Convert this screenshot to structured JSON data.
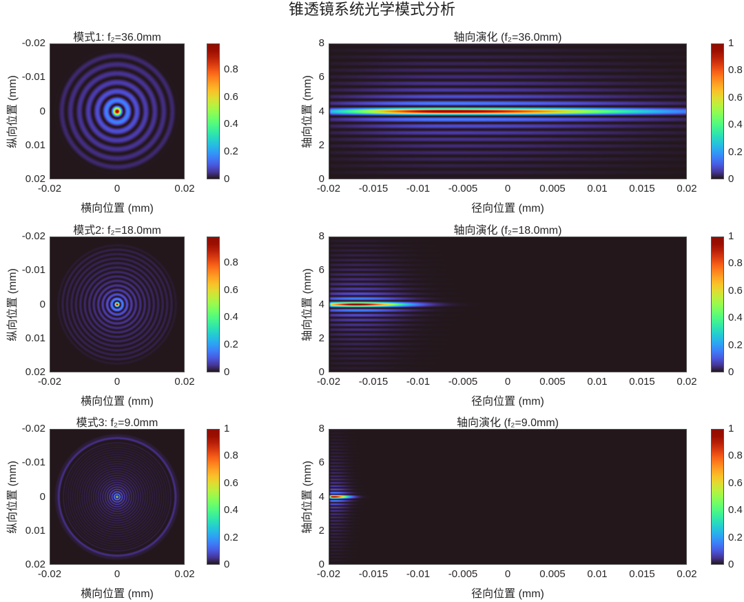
{
  "title": "锥透镜系统光学模式分析",
  "chart_data": [
    {
      "type": "heatmap",
      "title": "模式1: f₂=36.0mm",
      "xlabel": "横向位置 (mm)",
      "ylabel": "纵向位置 (mm)",
      "xlim": [
        -0.02,
        0.02
      ],
      "ylim": [
        0.02,
        -0.02
      ],
      "xticks": [
        "-0.02",
        "0",
        "0.02"
      ],
      "yticks": [
        "-0.02",
        "-0.01",
        "0",
        "0.01",
        "0.02"
      ],
      "cticks": [
        "0",
        "0.2",
        "0.4",
        "0.6",
        "0.8"
      ],
      "clim": [
        0,
        1
      ],
      "kind": "transverse",
      "ring_period_mm": 0.0027,
      "radius_mm": 0.019
    },
    {
      "type": "heatmap",
      "title": "轴向演化 (f₂=36.0mm)",
      "xlabel": "径向位置 (mm)",
      "ylabel": "轴向位置 (mm)",
      "xlim": [
        -0.02,
        0.02
      ],
      "ylim": [
        0,
        8
      ],
      "xticks": [
        "-0.02",
        "-0.015",
        "-0.01",
        "-0.005",
        "0",
        "0.005",
        "0.01",
        "0.015",
        "0.02"
      ],
      "yticks": [
        "8",
        "6",
        "4",
        "2",
        "0"
      ],
      "cticks": [
        "0",
        "0.2",
        "0.4",
        "0.6",
        "0.8",
        "1"
      ],
      "clim": [
        0,
        1
      ],
      "kind": "axial",
      "peak_x_mm": -0.007,
      "peak_z_mm": 4,
      "left_width_mm": 0.011,
      "right_width_mm": 0.02,
      "z_freq": 8
    },
    {
      "type": "heatmap",
      "title": "模式2: f₂=18.0mm",
      "xlabel": "横向位置 (mm)",
      "ylabel": "纵向位置 (mm)",
      "xlim": [
        -0.02,
        0.02
      ],
      "ylim": [
        0.02,
        -0.02
      ],
      "xticks": [
        "-0.02",
        "0",
        "0.02"
      ],
      "yticks": [
        "-0.02",
        "-0.01",
        "0",
        "0.01",
        "0.02"
      ],
      "cticks": [
        "0",
        "0.2",
        "0.4",
        "0.6",
        "0.8"
      ],
      "clim": [
        0,
        1
      ],
      "kind": "transverse",
      "ring_period_mm": 0.00135,
      "radius_mm": 0.019
    },
    {
      "type": "heatmap",
      "title": "轴向演化 (f₂=18.0mm)",
      "xlabel": "径向位置 (mm)",
      "ylabel": "轴向位置 (mm)",
      "xlim": [
        -0.02,
        0.02
      ],
      "ylim": [
        0,
        8
      ],
      "xticks": [
        "-0.02",
        "-0.015",
        "-0.01",
        "-0.005",
        "0",
        "0.005",
        "0.01",
        "0.015",
        "0.02"
      ],
      "yticks": [
        "8",
        "6",
        "4",
        "2",
        "0"
      ],
      "cticks": [
        "0",
        "0.2",
        "0.4",
        "0.6",
        "0.8",
        "1"
      ],
      "clim": [
        0,
        1
      ],
      "kind": "axial",
      "peak_x_mm": -0.017,
      "peak_z_mm": 4,
      "left_width_mm": 0.004,
      "right_width_mm": 0.005,
      "z_freq": 11
    },
    {
      "type": "heatmap",
      "title": "模式3: f₂=9.0mm",
      "xlabel": "横向位置 (mm)",
      "ylabel": "纵向位置 (mm)",
      "xlim": [
        -0.02,
        0.02
      ],
      "ylim": [
        0.02,
        -0.02
      ],
      "xticks": [
        "-0.02",
        "0",
        "0.02"
      ],
      "yticks": [
        "-0.02",
        "-0.01",
        "0",
        "0.01",
        "0.02"
      ],
      "cticks": [
        "0",
        "0.2",
        "0.4",
        "0.6",
        "0.8",
        "1"
      ],
      "clim": [
        0,
        1
      ],
      "kind": "transverse",
      "ring_period_mm": 0.0007,
      "radius_mm": 0.019
    },
    {
      "type": "heatmap",
      "title": "轴向演化 (f₂=9.0mm)",
      "xlabel": "径向位置 (mm)",
      "ylabel": "轴向位置 (mm)",
      "xlim": [
        -0.02,
        0.02
      ],
      "ylim": [
        0,
        8
      ],
      "xticks": [
        "-0.02",
        "-0.015",
        "-0.01",
        "-0.005",
        "0",
        "0.005",
        "0.01",
        "0.015",
        "0.02"
      ],
      "yticks": [
        "8",
        "6",
        "4",
        "2",
        "0"
      ],
      "cticks": [
        "0",
        "0.2",
        "0.4",
        "0.6",
        "0.8",
        "1"
      ],
      "clim": [
        0,
        1
      ],
      "kind": "axial",
      "peak_x_mm": -0.0195,
      "peak_z_mm": 4,
      "left_width_mm": 0.001,
      "right_width_mm": 0.0015,
      "z_freq": 16
    }
  ]
}
